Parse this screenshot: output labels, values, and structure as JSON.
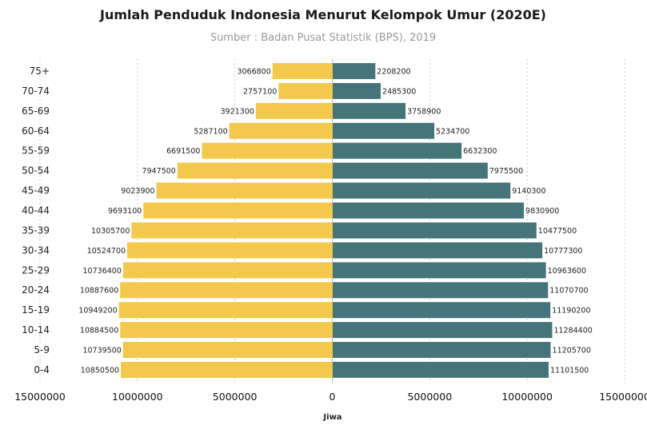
{
  "chart_data": {
    "type": "bar",
    "orientation": "horizontal-butterfly",
    "title": "Jumlah Penduduk Indonesia Menurut Kelompok Umur (2020E)",
    "subtitle": "Sumber : Badan Pusat Statistik (BPS), 2019",
    "xlabel": "Jiwa",
    "ylabel": "",
    "xlim": [
      -15000000,
      15000000
    ],
    "x_ticks": [
      -15000000,
      -10000000,
      -5000000,
      0,
      5000000,
      10000000,
      15000000
    ],
    "x_tick_labels": [
      "15000000",
      "10000000",
      "5000000",
      "0",
      "5000000",
      "10000000",
      "15000000"
    ],
    "grid": "vertical-dotted",
    "legend": "none",
    "categories": [
      "75+",
      "70-74",
      "65-69",
      "60-64",
      "55-59",
      "50-54",
      "45-49",
      "40-44",
      "35-39",
      "30-34",
      "25-29",
      "20-24",
      "15-19",
      "10-14",
      "5-9",
      "0-4"
    ],
    "series": [
      {
        "side": "left",
        "color": "#F2C94C",
        "values": [
          3066800,
          2757100,
          3921300,
          5287100,
          6691500,
          7947500,
          9023900,
          9693100,
          10305700,
          10524700,
          10736400,
          10887600,
          10949200,
          10884500,
          10739500,
          10850500
        ]
      },
      {
        "side": "right",
        "color": "#45757B",
        "values": [
          2208200,
          2485300,
          3758900,
          5234700,
          6632300,
          7975500,
          9140300,
          9830900,
          10477500,
          10777300,
          10963600,
          11070700,
          11190200,
          11284400,
          11205700,
          11101500
        ]
      }
    ]
  }
}
